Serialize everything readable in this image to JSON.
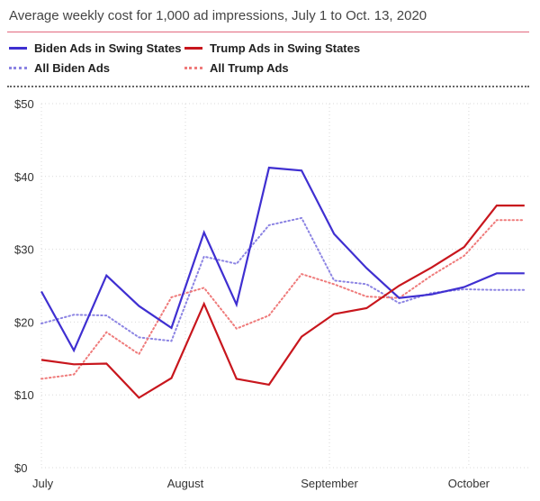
{
  "title": "Average weekly cost for 1,000 ad impressions, July 1 to Oct. 13, 2020",
  "legend": [
    {
      "label": "Biden Ads in Swing States",
      "color": "#3f2fd1",
      "style": "solid"
    },
    {
      "label": "Trump Ads in Swing States",
      "color": "#c8161d",
      "style": "solid"
    },
    {
      "label": "All Biden Ads",
      "color": "#8c84e3",
      "style": "dotted"
    },
    {
      "label": "All Trump Ads",
      "color": "#ef7b7b",
      "style": "dotted"
    }
  ],
  "chart_data": {
    "type": "line",
    "title": "Average weekly cost for 1,000 ad impressions, July 1 to Oct. 13, 2020",
    "xlabel": "",
    "ylabel": "",
    "x": [
      "2020-07-01",
      "2020-07-08",
      "2020-07-15",
      "2020-07-22",
      "2020-07-29",
      "2020-08-05",
      "2020-08-12",
      "2020-08-19",
      "2020-08-26",
      "2020-09-02",
      "2020-09-09",
      "2020-09-16",
      "2020-09-23",
      "2020-09-30",
      "2020-10-07",
      "2020-10-13"
    ],
    "x_ticks": [
      {
        "label": "July",
        "date": "2020-07-01"
      },
      {
        "label": "August",
        "date": "2020-08-01"
      },
      {
        "label": "September",
        "date": "2020-09-01"
      },
      {
        "label": "October",
        "date": "2020-10-01"
      }
    ],
    "y_ticks": [
      {
        "label": "$0",
        "value": 0
      },
      {
        "label": "$10",
        "value": 10
      },
      {
        "label": "$20",
        "value": 20
      },
      {
        "label": "$30",
        "value": 30
      },
      {
        "label": "$40",
        "value": 40
      },
      {
        "label": "$50",
        "value": 50
      }
    ],
    "ylim": [
      0,
      50
    ],
    "grid": true,
    "legend_position": "top",
    "series": [
      {
        "name": "Biden Ads in Swing States",
        "color": "#3f2fd1",
        "style": "solid",
        "values": [
          24.2,
          16.1,
          26.4,
          22.2,
          19.2,
          32.3,
          22.4,
          41.2,
          40.8,
          32.1,
          27.4,
          23.3,
          23.8,
          24.8,
          26.7,
          26.7
        ]
      },
      {
        "name": "Trump Ads in Swing States",
        "color": "#c8161d",
        "style": "solid",
        "values": [
          14.8,
          14.2,
          14.3,
          9.6,
          12.3,
          22.5,
          12.2,
          11.4,
          18.0,
          21.1,
          21.9,
          25.0,
          27.5,
          30.3,
          36.0,
          36.0
        ]
      },
      {
        "name": "All Biden Ads",
        "color": "#8c84e3",
        "style": "dotted",
        "values": [
          19.8,
          21.0,
          20.9,
          17.9,
          17.4,
          29.0,
          28.0,
          33.3,
          34.3,
          25.7,
          25.2,
          22.6,
          24.0,
          24.5,
          24.4,
          24.4
        ]
      },
      {
        "name": "All Trump Ads",
        "color": "#ef7b7b",
        "style": "dotted",
        "values": [
          12.2,
          12.8,
          18.6,
          15.6,
          23.4,
          24.7,
          19.1,
          20.9,
          26.6,
          25.2,
          23.5,
          23.3,
          26.4,
          29.1,
          34.0,
          34.0
        ]
      }
    ]
  }
}
